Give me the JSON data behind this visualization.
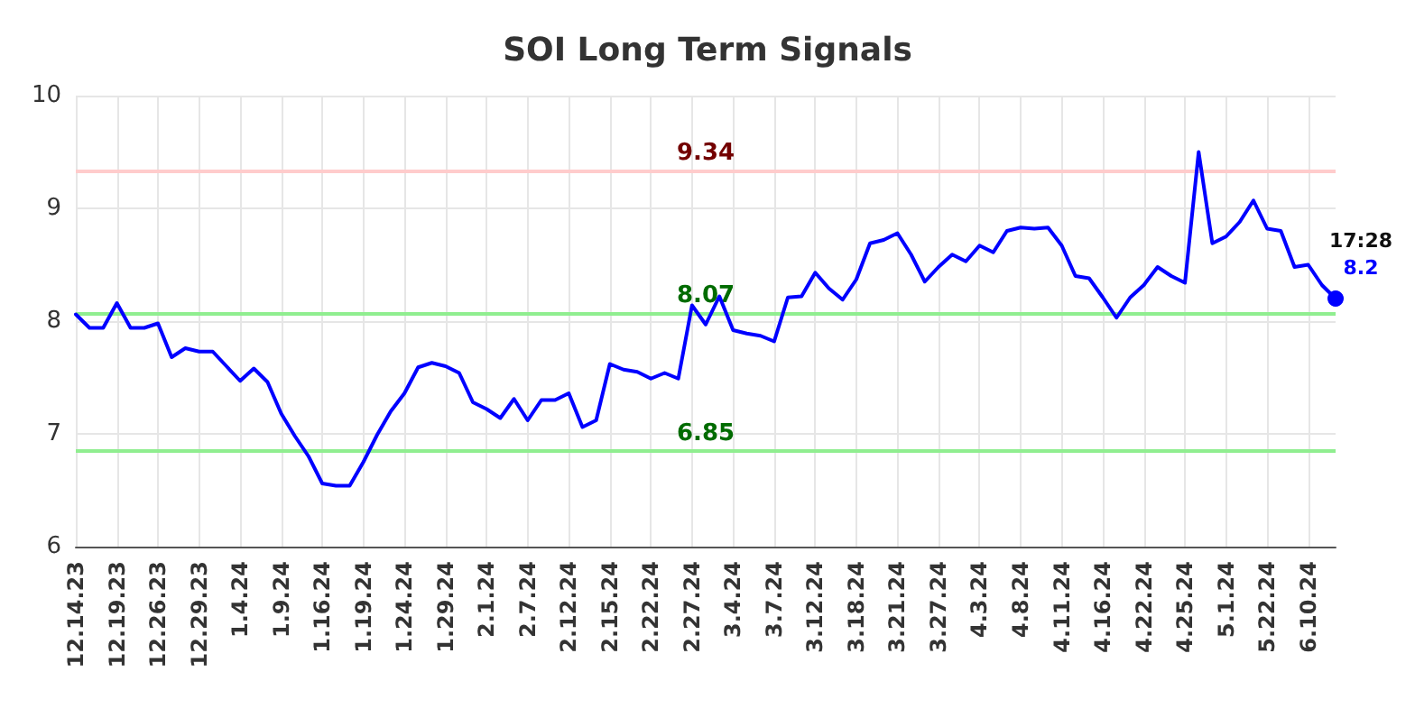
{
  "chart_data": {
    "type": "line",
    "title": "SOI Long Term Signals",
    "categories": [
      "12.14.23",
      null,
      null,
      "12.19.23",
      null,
      null,
      "12.26.23",
      null,
      null,
      "12.29.23",
      null,
      null,
      "1.4.24",
      null,
      null,
      "1.9.24",
      null,
      null,
      "1.16.24",
      null,
      null,
      "1.19.24",
      null,
      null,
      "1.24.24",
      null,
      null,
      "1.29.24",
      null,
      null,
      "2.1.24",
      null,
      null,
      "2.7.24",
      null,
      null,
      "2.12.24",
      null,
      null,
      "2.15.24",
      null,
      null,
      "2.22.24",
      null,
      null,
      "2.27.24",
      null,
      null,
      "3.4.24",
      null,
      null,
      "3.7.24",
      null,
      null,
      "3.12.24",
      null,
      null,
      "3.18.24",
      null,
      null,
      "3.21.24",
      null,
      null,
      "3.27.24",
      null,
      null,
      "4.3.24",
      null,
      null,
      "4.8.24",
      null,
      null,
      "4.11.24",
      null,
      null,
      "4.16.24",
      null,
      null,
      "4.22.24",
      null,
      null,
      "4.25.24",
      null,
      null,
      "5.1.24",
      null,
      null,
      "5.22.24",
      null,
      null,
      "6.10.24",
      null,
      null
    ],
    "series": [
      {
        "color": "#0000ff",
        "values": [
          8.06,
          7.94,
          7.94,
          8.16,
          7.94,
          7.94,
          7.98,
          7.68,
          7.76,
          7.73,
          7.73,
          7.6,
          7.47,
          7.58,
          7.46,
          7.18,
          6.98,
          6.8,
          6.56,
          6.54,
          6.54,
          6.75,
          6.99,
          7.2,
          7.36,
          7.59,
          7.63,
          7.6,
          7.54,
          7.28,
          7.22,
          7.14,
          7.31,
          7.12,
          7.3,
          7.3,
          7.36,
          7.06,
          7.12,
          7.62,
          7.57,
          7.55,
          7.49,
          7.54,
          7.49,
          8.14,
          7.97,
          8.22,
          7.92,
          7.89,
          7.87,
          7.82,
          8.21,
          8.22,
          8.43,
          8.29,
          8.19,
          8.37,
          8.69,
          8.72,
          8.78,
          8.59,
          8.35,
          8.48,
          8.59,
          8.53,
          8.67,
          8.61,
          8.8,
          8.83,
          8.82,
          8.83,
          8.67,
          8.4,
          8.38,
          8.21,
          8.03,
          8.21,
          8.32,
          8.48,
          8.4,
          8.34,
          9.5,
          8.69,
          8.75,
          8.88,
          9.07,
          8.82,
          8.8,
          8.48,
          8.5,
          8.32,
          8.2
        ]
      }
    ],
    "ylim": [
      6,
      10
    ],
    "yticks": [
      6,
      7,
      8,
      9,
      10
    ],
    "grid": true,
    "marker": "none",
    "line_style": "solid",
    "ref_lines": [
      {
        "axis": "y",
        "value": 9.34,
        "label": "9.34",
        "color": "#ffcccc"
      },
      {
        "axis": "y",
        "value": 8.07,
        "label": "8.07",
        "color": "#90ee90"
      },
      {
        "axis": "y",
        "value": 6.85,
        "label": "6.85",
        "color": "#90ee90"
      }
    ],
    "annotations": [
      "17:28",
      "8.2"
    ]
  }
}
